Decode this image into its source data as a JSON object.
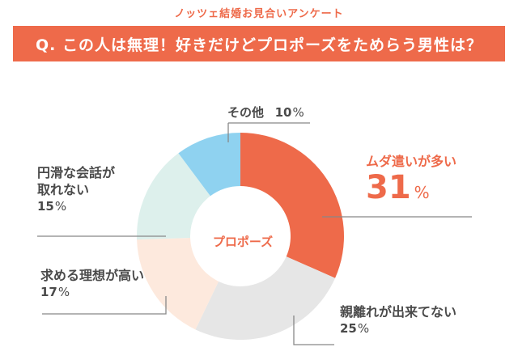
{
  "header": {
    "survey_title": "ノッツェ結婚お見合いアンケート",
    "question": "Q. この人は無理！好きだけどプロポーズをためらう男性は？"
  },
  "center_label": "プロポーズ",
  "percent_sign": "%",
  "chart_data": {
    "type": "pie",
    "donut": true,
    "title": "Q. この人は無理！好きだけどプロポーズをためらう男性は？",
    "center_label": "プロポーズ",
    "categories": [
      "ムダ遣いが多い",
      "親離れが出来てない",
      "求める理想が高い",
      "円滑な会話が取れない",
      "その他"
    ],
    "values": [
      31,
      25,
      17,
      15,
      10
    ],
    "unit": "%",
    "colors": [
      "#ee6a4a",
      "#e6e6e6",
      "#fde9dd",
      "#ddf0ec",
      "#8fd2f0"
    ],
    "labels": [
      {
        "name": "ムダ遣いが多い",
        "value": "31"
      },
      {
        "name": "親離れが出来てない",
        "value": "25"
      },
      {
        "name": "求める理想が高い",
        "value": "17"
      },
      {
        "name_lines": [
          "円滑な会話が",
          "取れない"
        ],
        "value": "15"
      },
      {
        "name": "その他",
        "value": "10"
      }
    ]
  }
}
